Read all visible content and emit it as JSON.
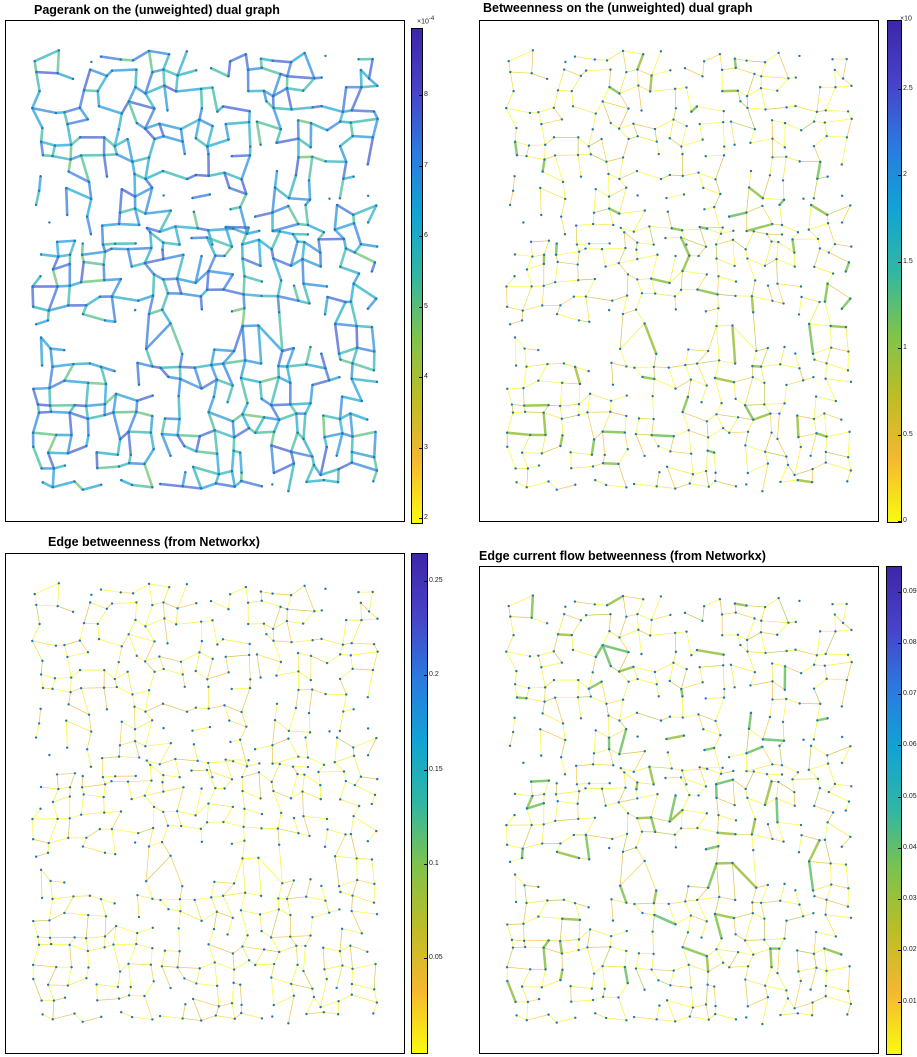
{
  "colormap": [
    "#f9fb0e",
    "#f5b82f",
    "#bdbd26",
    "#7fc34b",
    "#30b7a3",
    "#10a4d4",
    "#2b7ae0",
    "#4743c8",
    "#3e26a8"
  ],
  "node_color": "#1f77b4",
  "chart_data": [
    {
      "type": "network",
      "title": "Pagerank on the (unweighted) dual graph",
      "colorbar": {
        "multiplier": "×10",
        "exponent": "-4",
        "ticks": [
          "2",
          "3",
          "4",
          "5",
          "6",
          "7",
          "8"
        ],
        "range": [
          1.95,
          8.95
        ]
      },
      "edge_value_range": [
        4.8,
        7.8
      ]
    },
    {
      "type": "network",
      "title": "Betweenness on the (unweighted) dual graph",
      "colorbar": {
        "multiplier": "×10",
        "exponent": "",
        "ticks": [
          "0",
          "0.5",
          "1",
          "1.5",
          "2",
          "2.5"
        ],
        "range": [
          0,
          2.9
        ]
      },
      "edge_value_range": [
        0,
        1.2
      ]
    },
    {
      "type": "network",
      "title": "Edge betweenness (from Networkx)",
      "colorbar": {
        "multiplier": "",
        "exponent": "",
        "ticks": [
          "0.05",
          "0.1",
          "0.15",
          "0.2",
          "0.25"
        ],
        "range": [
          0,
          0.265
        ]
      },
      "edge_value_range": [
        0,
        0.06
      ]
    },
    {
      "type": "network",
      "title": "Edge current flow betweenness (from Networkx)",
      "colorbar": {
        "multiplier": "",
        "exponent": "",
        "ticks": [
          "0.01",
          "0.02",
          "0.03",
          "0.04",
          "0.05",
          "0.06",
          "0.07",
          "0.08",
          "0.09"
        ],
        "range": [
          0,
          0.095
        ]
      },
      "edge_value_range": [
        0,
        0.04
      ]
    }
  ]
}
